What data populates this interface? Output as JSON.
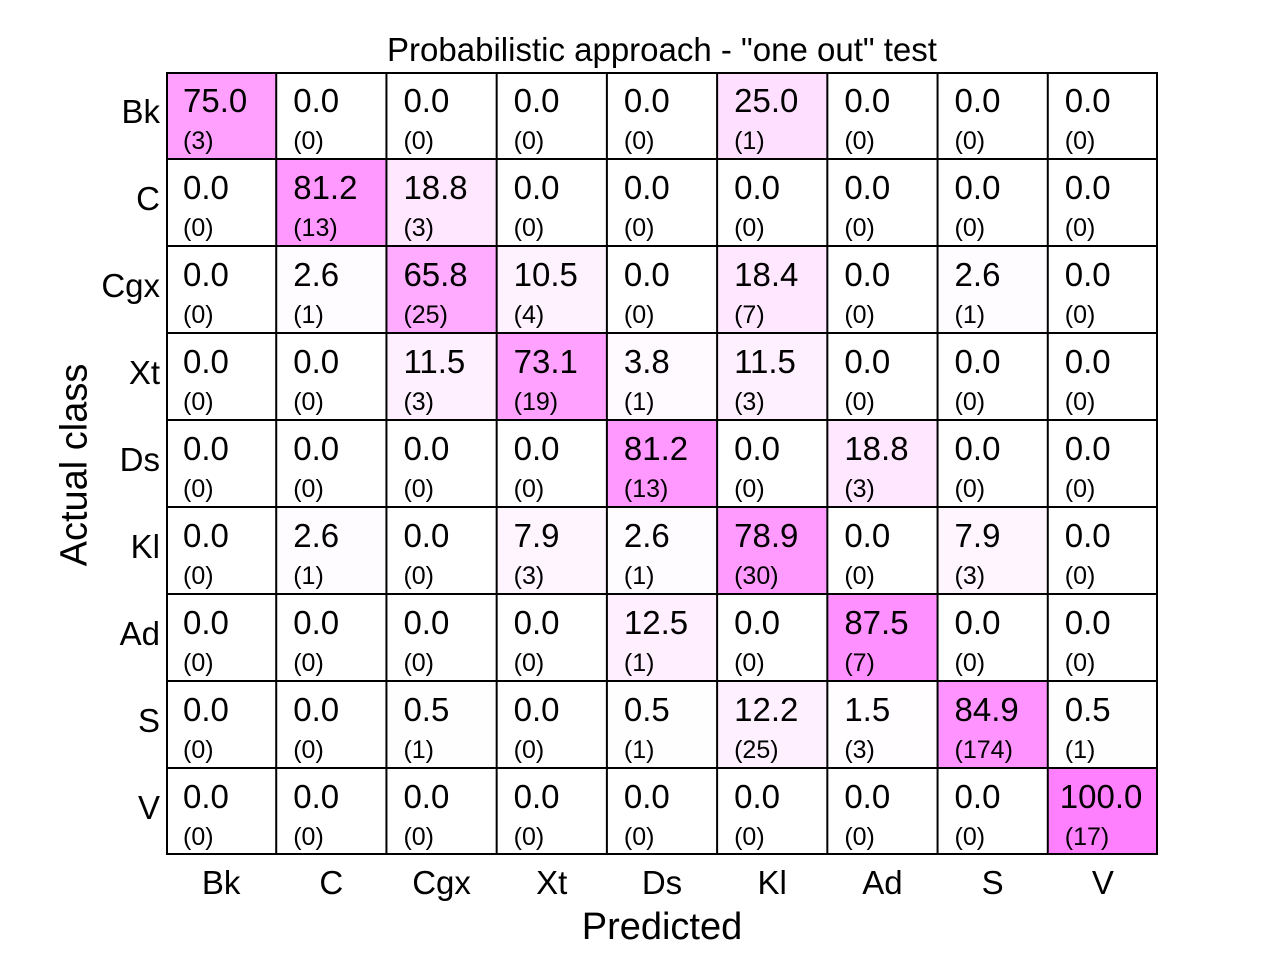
{
  "chart_data": {
    "type": "heatmap",
    "title": "Probabilistic approach - \"one out\" test",
    "xlabel": "Predicted",
    "ylabel": "Actual class",
    "rows": [
      "Bk",
      "C",
      "Cgx",
      "Xt",
      "Ds",
      "Kl",
      "Ad",
      "S",
      "V"
    ],
    "columns": [
      "Bk",
      "C",
      "Cgx",
      "Xt",
      "Ds",
      "Kl",
      "Ad",
      "S",
      "V"
    ],
    "color_scale": {
      "low": "#ffffff",
      "high": "#ff80ff",
      "min": 0,
      "max": 100
    },
    "values": [
      [
        "75.0",
        "0.0",
        "0.0",
        "0.0",
        "0.0",
        "25.0",
        "0.0",
        "0.0",
        "0.0"
      ],
      [
        "0.0",
        "81.2",
        "18.8",
        "0.0",
        "0.0",
        "0.0",
        "0.0",
        "0.0",
        "0.0"
      ],
      [
        "0.0",
        "2.6",
        "65.8",
        "10.5",
        "0.0",
        "18.4",
        "0.0",
        "2.6",
        "0.0"
      ],
      [
        "0.0",
        "0.0",
        "11.5",
        "73.1",
        "3.8",
        "11.5",
        "0.0",
        "0.0",
        "0.0"
      ],
      [
        "0.0",
        "0.0",
        "0.0",
        "0.0",
        "81.2",
        "0.0",
        "18.8",
        "0.0",
        "0.0"
      ],
      [
        "0.0",
        "2.6",
        "0.0",
        "7.9",
        "2.6",
        "78.9",
        "0.0",
        "7.9",
        "0.0"
      ],
      [
        "0.0",
        "0.0",
        "0.0",
        "0.0",
        "12.5",
        "0.0",
        "87.5",
        "0.0",
        "0.0"
      ],
      [
        "0.0",
        "0.0",
        "0.5",
        "0.0",
        "0.5",
        "12.2",
        "1.5",
        "84.9",
        "0.5"
      ],
      [
        "0.0",
        "0.0",
        "0.0",
        "0.0",
        "0.0",
        "0.0",
        "0.0",
        "0.0",
        "100.0"
      ]
    ],
    "counts": [
      [
        "(3)",
        "(0)",
        "(0)",
        "(0)",
        "(0)",
        "(1)",
        "(0)",
        "(0)",
        "(0)"
      ],
      [
        "(0)",
        "(13)",
        "(3)",
        "(0)",
        "(0)",
        "(0)",
        "(0)",
        "(0)",
        "(0)"
      ],
      [
        "(0)",
        "(1)",
        "(25)",
        "(4)",
        "(0)",
        "(7)",
        "(0)",
        "(1)",
        "(0)"
      ],
      [
        "(0)",
        "(0)",
        "(3)",
        "(19)",
        "(1)",
        "(3)",
        "(0)",
        "(0)",
        "(0)"
      ],
      [
        "(0)",
        "(0)",
        "(0)",
        "(0)",
        "(13)",
        "(0)",
        "(3)",
        "(0)",
        "(0)"
      ],
      [
        "(0)",
        "(1)",
        "(0)",
        "(3)",
        "(1)",
        "(30)",
        "(0)",
        "(3)",
        "(0)"
      ],
      [
        "(0)",
        "(0)",
        "(0)",
        "(0)",
        "(1)",
        "(0)",
        "(7)",
        "(0)",
        "(0)"
      ],
      [
        "(0)",
        "(0)",
        "(1)",
        "(0)",
        "(1)",
        "(25)",
        "(3)",
        "(174)",
        "(1)"
      ],
      [
        "(0)",
        "(0)",
        "(0)",
        "(0)",
        "(0)",
        "(0)",
        "(0)",
        "(0)",
        "(17)"
      ]
    ]
  }
}
